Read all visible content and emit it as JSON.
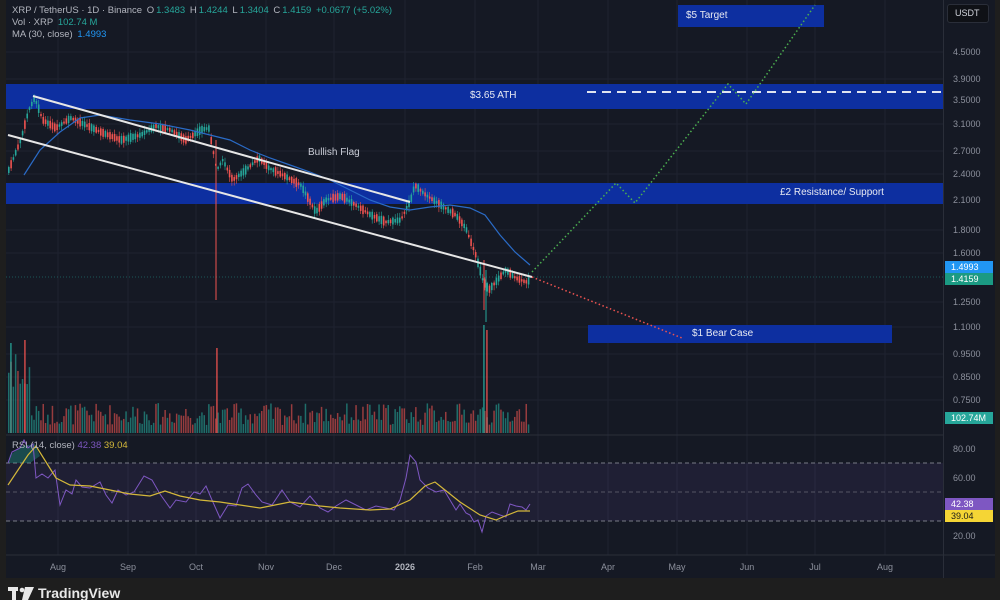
{
  "header": {
    "symbol": "XRP / TetherUS · 1D · Binance",
    "open_label": "O",
    "open": "1.3483",
    "high_label": "H",
    "high": "1.4244",
    "low_label": "L",
    "low": "1.3404",
    "close_label": "C",
    "close": "1.4159",
    "change": "+0.0677 (+5.02%)",
    "vol_label": "Vol · XRP",
    "vol_value": "102.74 M",
    "ma_label": "MA (30, close)",
    "ma_value": "1.4993"
  },
  "currency_button": "USDT",
  "price_axis": [
    "4.5000",
    "3.9000",
    "3.5000",
    "3.1000",
    "2.7000",
    "2.4000",
    "2.1000",
    "1.8000",
    "1.6000",
    "1.2500",
    "1.1000",
    "0.9500",
    "0.8500",
    "0.7500"
  ],
  "badges": {
    "ma": "1.4993",
    "last": "1.4159",
    "volume": "102.74M",
    "rsi": "42.38",
    "rsi_ma": "39.04"
  },
  "rsi_axis": [
    "80.00",
    "60.00",
    "20.00"
  ],
  "rsi_legend": {
    "label": "RSI (14, close)",
    "rsi": "42.38",
    "ma": "39.04"
  },
  "time_axis": [
    "Aug",
    "Sep",
    "Oct",
    "Nov",
    "Dec",
    "2026",
    "Feb",
    "Mar",
    "Apr",
    "May",
    "Jun",
    "Jul",
    "Aug"
  ],
  "annotations": {
    "target": "$5 Target",
    "ath": "$3.65 ATH",
    "bullish_flag": "Bullish Flag",
    "resistance": "£2 Resistance/ Support",
    "bear_case": "$1 Bear Case"
  },
  "branding": "TradingView",
  "colors": {
    "up": "#26a69a",
    "down": "#ef5350",
    "ma": "#2962ff",
    "zone": "#0d2fa0",
    "rsi": "#7e57c2",
    "rsi_ma": "#d4b83a",
    "bull_path": "#4caf50",
    "bear_path": "#ef5350"
  },
  "chart_data": {
    "type": "candlestick",
    "title": "XRP / TetherUS · 1D · Binance",
    "symbol": "XRPUSDT",
    "interval": "1D",
    "last_ohlc": {
      "open": 1.3483,
      "high": 1.4244,
      "low": 1.3404,
      "close": 1.4159,
      "change": 0.0677,
      "change_pct": 5.02
    },
    "volume_last": "102.74M",
    "ma30_last": 1.4993,
    "x_ticks": [
      "Aug",
      "Sep",
      "Oct",
      "Nov",
      "Dec",
      "2026",
      "Feb",
      "Mar",
      "Apr",
      "May",
      "Jun",
      "Jul",
      "Aug"
    ],
    "y_ticks": [
      4.5,
      3.9,
      3.5,
      3.1,
      2.7,
      2.4,
      2.1,
      1.8,
      1.6,
      1.25,
      1.1,
      0.95,
      0.85,
      0.75
    ],
    "y_scale": "log",
    "approx_monthly_close": {
      "categories": [
        "Jul-end",
        "Aug",
        "Sep",
        "Oct",
        "Nov",
        "Dec",
        "Jan",
        "Feb",
        "Feb-end"
      ],
      "values": [
        3.55,
        2.9,
        2.85,
        2.65,
        2.2,
        1.9,
        2.0,
        1.45,
        1.42
      ]
    },
    "zones": [
      {
        "label": "$5 Target",
        "range": [
          4.8,
          5.3
        ]
      },
      {
        "label": "$3.65 ATH",
        "range": [
          3.35,
          3.85
        ],
        "dashed_line": 3.65
      },
      {
        "label": "£2 Resistance/ Support",
        "range": [
          2.0,
          2.25
        ]
      },
      {
        "label": "$1 Bear Case",
        "range": [
          0.99,
          1.06
        ]
      }
    ],
    "pattern": {
      "label": "Bullish Flag",
      "upper_line": [
        [
          3.6,
          "Jul-end"
        ],
        [
          2.0,
          "Jan"
        ]
      ],
      "lower_line": [
        [
          2.9,
          "Jul-end"
        ],
        [
          1.4,
          "Feb-end"
        ]
      ]
    },
    "projections": [
      {
        "name": "bull",
        "points": [
          1.42,
          2.3,
          2.05,
          3.75,
          3.4,
          5.2
        ]
      },
      {
        "name": "bear",
        "points": [
          1.42,
          1.02
        ]
      }
    ],
    "rsi": {
      "period": 14,
      "value": 42.38,
      "ma": 39.04,
      "levels": [
        70,
        50,
        30
      ],
      "ylim": [
        10,
        90
      ]
    }
  }
}
